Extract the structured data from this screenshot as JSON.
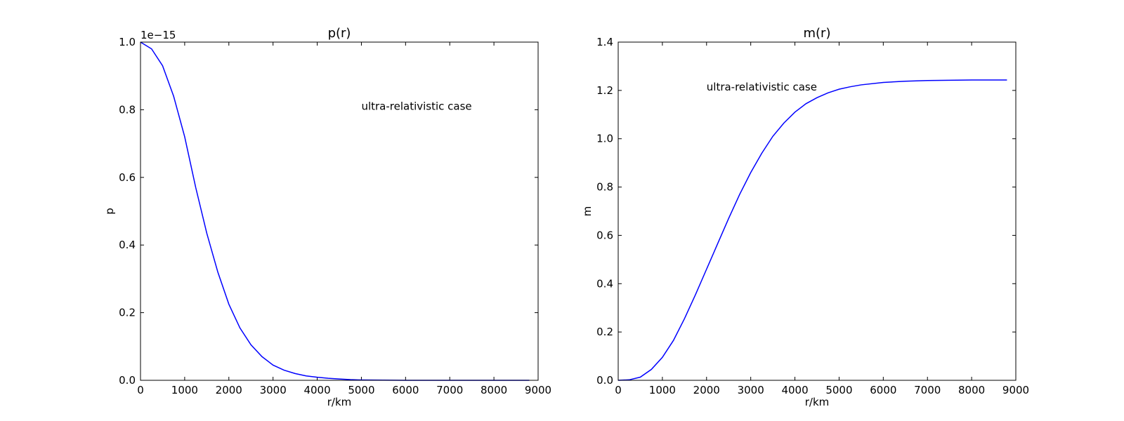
{
  "chart_data": [
    {
      "type": "line",
      "title": "p(r)",
      "xlabel": "r/km",
      "ylabel": "p",
      "offset_text": "1e−15",
      "annotation": {
        "text": "ultra-relativistic case",
        "x": 5000,
        "y": 0.8
      },
      "xlim": [
        0,
        9000
      ],
      "ylim": [
        0,
        1.0
      ],
      "xticks": [
        0,
        1000,
        2000,
        3000,
        4000,
        5000,
        6000,
        7000,
        8000,
        9000
      ],
      "xtick_labels": [
        "0",
        "1000",
        "2000",
        "3000",
        "4000",
        "5000",
        "6000",
        "7000",
        "8000",
        "9000"
      ],
      "yticks": [
        0,
        0.2,
        0.4,
        0.6,
        0.8,
        1.0
      ],
      "ytick_labels": [
        "0.0",
        "0.2",
        "0.4",
        "0.6",
        "0.8",
        "1.0"
      ],
      "line_color": "#0000ff",
      "grid": false,
      "series": [
        {
          "x": [
            0,
            250,
            500,
            750,
            1000,
            1250,
            1500,
            1750,
            2000,
            2250,
            2500,
            2750,
            3000,
            3250,
            3500,
            3750,
            4000,
            4250,
            4500,
            4750,
            5000,
            5500,
            6000,
            6500,
            7000,
            7500,
            8000,
            8500,
            8800
          ],
          "y": [
            1.0,
            0.98,
            0.93,
            0.84,
            0.72,
            0.57,
            0.435,
            0.32,
            0.225,
            0.155,
            0.105,
            0.07,
            0.045,
            0.03,
            0.02,
            0.013,
            0.009,
            0.006,
            0.004,
            0.002,
            0.001,
            0.0004,
            0.0001,
            0,
            0,
            0,
            0,
            0,
            0
          ]
        }
      ]
    },
    {
      "type": "line",
      "title": "m(r)",
      "xlabel": "r/km",
      "ylabel": "m",
      "annotation": {
        "text": "ultra-relativistic case",
        "x": 2000,
        "y": 1.2
      },
      "xlim": [
        0,
        9000
      ],
      "ylim": [
        0,
        1.4
      ],
      "xticks": [
        0,
        1000,
        2000,
        3000,
        4000,
        5000,
        6000,
        7000,
        8000,
        9000
      ],
      "xtick_labels": [
        "0",
        "1000",
        "2000",
        "3000",
        "4000",
        "5000",
        "6000",
        "7000",
        "8000",
        "9000"
      ],
      "yticks": [
        0,
        0.2,
        0.4,
        0.6,
        0.8,
        1.0,
        1.2,
        1.4
      ],
      "ytick_labels": [
        "0.0",
        "0.2",
        "0.4",
        "0.6",
        "0.8",
        "1.0",
        "1.2",
        "1.4"
      ],
      "line_color": "#0000ff",
      "grid": false,
      "series": [
        {
          "x": [
            0,
            250,
            500,
            750,
            1000,
            1250,
            1500,
            1750,
            2000,
            2250,
            2500,
            2750,
            3000,
            3250,
            3500,
            3750,
            4000,
            4250,
            4500,
            4750,
            5000,
            5250,
            5500,
            6000,
            6500,
            7000,
            7500,
            8000,
            8500,
            8800
          ],
          "y": [
            0,
            0.002,
            0.013,
            0.045,
            0.095,
            0.165,
            0.255,
            0.355,
            0.46,
            0.565,
            0.67,
            0.77,
            0.86,
            0.94,
            1.01,
            1.065,
            1.11,
            1.145,
            1.17,
            1.19,
            1.205,
            1.215,
            1.223,
            1.233,
            1.238,
            1.241,
            1.242,
            1.243,
            1.243,
            1.243
          ]
        }
      ]
    }
  ]
}
